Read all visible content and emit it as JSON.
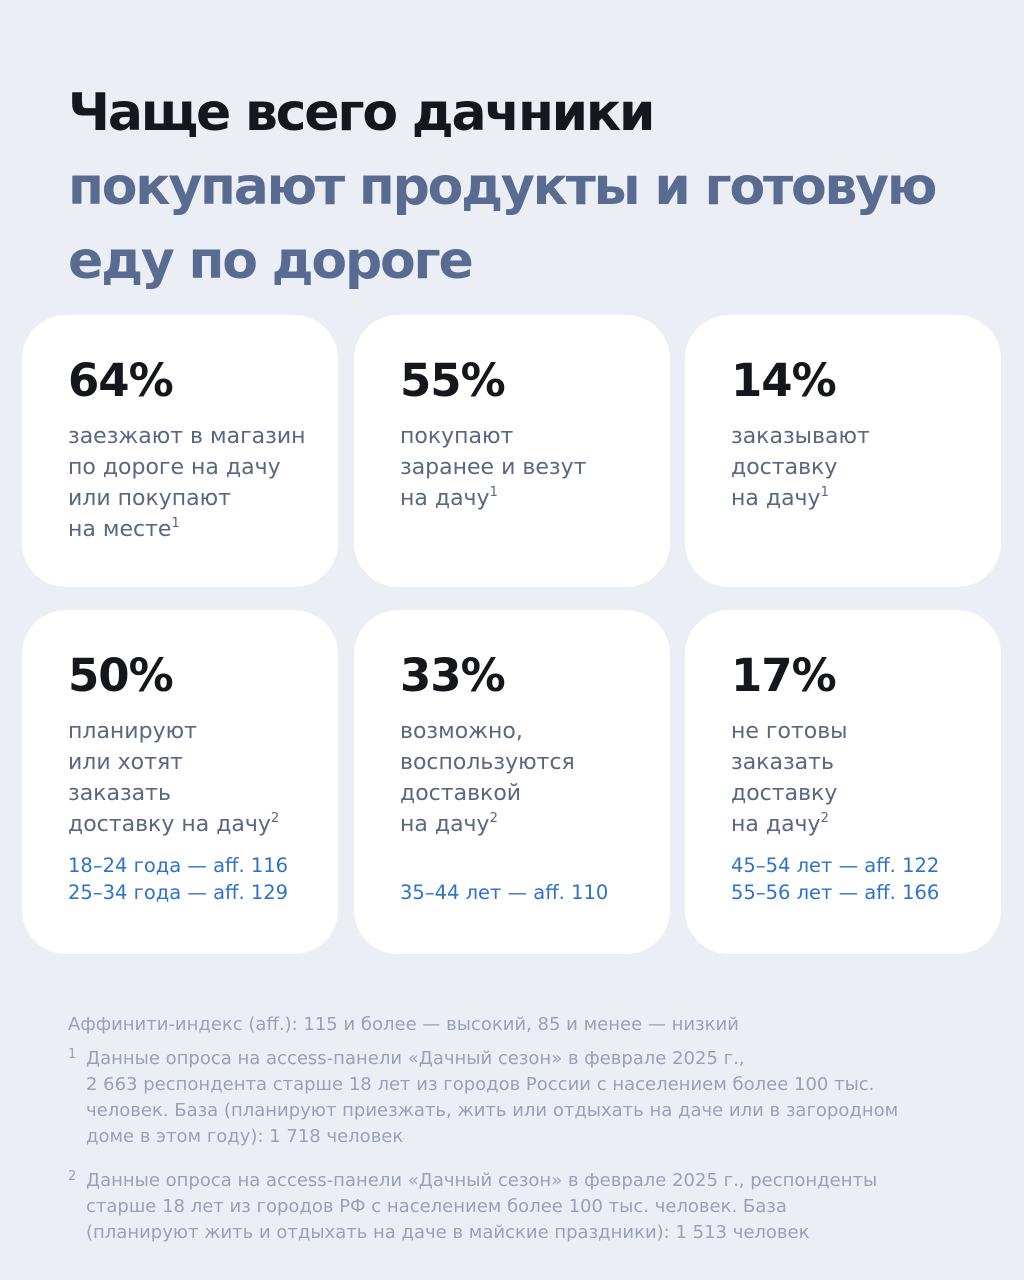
{
  "title": {
    "line1": "Чаще всего дачники",
    "line2": "покупают продукты и готовую",
    "line3": "еду по дороге"
  },
  "colors": {
    "background": "#eceef5",
    "title_dark": "#15171c",
    "title_accent": "#5a6b91",
    "card": "#ffffff",
    "desc_text": "#5b6781",
    "affinity_text": "#2f72c9",
    "footnote_text": "#9aa1b3"
  },
  "cards": [
    {
      "percent": "64%",
      "lines": [
        "заезжают в магазин",
        "по дороге на дачу",
        "или покупают",
        "на месте"
      ],
      "footnote": "1",
      "affinity": []
    },
    {
      "percent": "55%",
      "lines": [
        "покупают",
        "заранее и везут",
        "на дачу"
      ],
      "footnote": "1",
      "affinity": []
    },
    {
      "percent": "14%",
      "lines": [
        "заказывают",
        "доставку",
        "на дачу"
      ],
      "footnote": "1",
      "affinity": []
    },
    {
      "percent": "50%",
      "lines": [
        "планируют",
        "или хотят",
        "заказать",
        "доставку на дачу"
      ],
      "footnote": "2",
      "affinity": [
        "18–24 года — aff. 116",
        "25–34 года — aff. 129"
      ]
    },
    {
      "percent": "33%",
      "lines": [
        "возможно,",
        "воспользуются",
        "доставкой",
        "на дачу"
      ],
      "footnote": "2",
      "affinity": [
        "35–44 лет — aff. 110"
      ]
    },
    {
      "percent": "17%",
      "lines": [
        "не готовы",
        "заказать",
        "доставку",
        "на дачу"
      ],
      "footnote": "2",
      "affinity": [
        "45–54 лет — aff. 122",
        "55–56 лет — aff. 166"
      ]
    }
  ],
  "footer": {
    "affinity_note": "Аффинити-индекс (aff.): 115 и более — высокий, 85 и менее — низкий",
    "notes": [
      {
        "mark": "1",
        "lines": [
          "Данные опроса на access-панели «Дачный сезон» в феврале 2025 г.,",
          "2 663 респондента старше 18 лет из городов России с населением более 100 тыс.",
          "человек. База (планируют приезжать, жить или отдыхать на даче или в загородном",
          "доме в этом году): 1 718 человек"
        ]
      },
      {
        "mark": "2",
        "lines": [
          "Данные опроса на access-панели «Дачный сезон» в феврале 2025 г., респонденты",
          "старше 18 лет из городов РФ с населением более 100 тыс. человек. База",
          "(планируют жить и отдыхать на даче в майские праздники): 1 513 человек"
        ]
      }
    ]
  }
}
